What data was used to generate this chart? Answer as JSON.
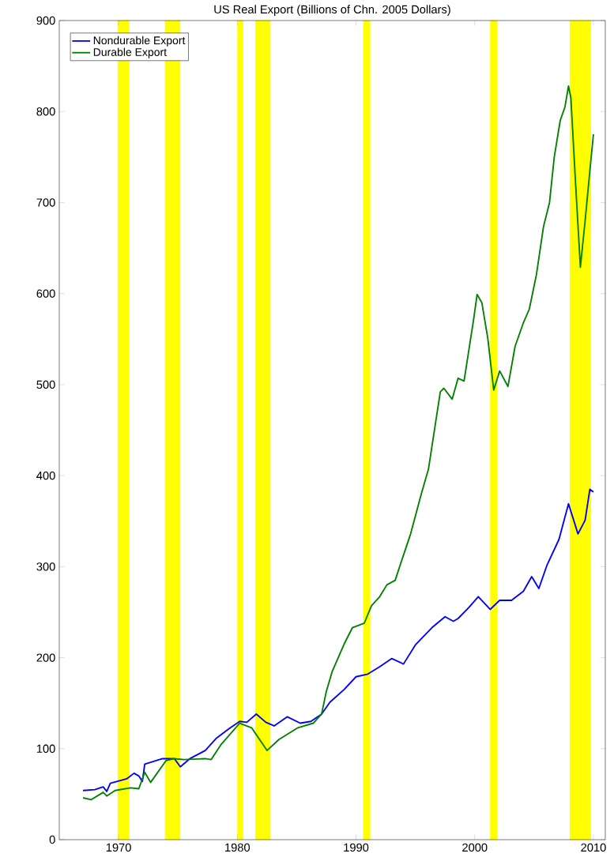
{
  "chart_data": {
    "type": "line",
    "title": "US Real Export (Billions of Chn. 2005 Dollars)",
    "xlim": [
      1965,
      2011
    ],
    "ylim": [
      0,
      900
    ],
    "xticks": [
      1970,
      1980,
      1990,
      2000,
      2010
    ],
    "yticks": [
      0,
      100,
      200,
      300,
      400,
      500,
      600,
      700,
      800,
      900
    ],
    "grid": false,
    "legend": "top left",
    "marker": "none",
    "line_style": "solid",
    "bands": [
      {
        "axis": "x",
        "from": 1969.9,
        "to": 1970.9,
        "color": "#ffff00"
      },
      {
        "axis": "x",
        "from": 1973.9,
        "to": 1975.2,
        "color": "#ffff00"
      },
      {
        "axis": "x",
        "from": 1980.0,
        "to": 1980.5,
        "color": "#ffff00"
      },
      {
        "axis": "x",
        "from": 1981.5,
        "to": 1982.8,
        "color": "#ffff00"
      },
      {
        "axis": "x",
        "from": 1990.6,
        "to": 1991.2,
        "color": "#ffff00"
      },
      {
        "axis": "x",
        "from": 2001.3,
        "to": 2001.9,
        "color": "#ffff00"
      },
      {
        "axis": "x",
        "from": 2008.0,
        "to": 2009.8,
        "color": "#ffff00"
      }
    ],
    "series": [
      {
        "name": "Nondurable Export",
        "color": "#0000ff",
        "x": [
          1967.0,
          1968.0,
          1968.7,
          1969.0,
          1969.3,
          1970.7,
          1971.3,
          1971.7,
          1972.0,
          1972.2,
          1973.7,
          1974.7,
          1975.2,
          1976.0,
          1977.3,
          1978.2,
          1979.3,
          1980.2,
          1980.8,
          1981.6,
          1982.4,
          1983.1,
          1984.2,
          1985.3,
          1986.2,
          1987.1,
          1987.8,
          1989.0,
          1990.0,
          1991.0,
          1992.0,
          1993.0,
          1994.0,
          1995.0,
          1996.4,
          1997.5,
          1998.2,
          1998.6,
          1999.5,
          2000.3,
          2001.3,
          2002.1,
          2003.1,
          2004.1,
          2004.8,
          2005.4,
          2006.1,
          2007.1,
          2007.9,
          2008.7,
          2009.3,
          2009.7,
          2010.0
        ],
        "values": [
          54,
          55,
          58,
          53,
          62,
          67,
          73,
          70,
          64,
          83,
          89,
          89,
          80,
          89,
          98,
          111,
          122,
          130,
          129,
          138,
          129,
          125,
          135,
          128,
          130,
          138,
          151,
          165,
          179,
          182,
          190,
          199,
          193,
          214,
          233,
          245,
          240,
          243,
          255,
          267,
          253,
          263,
          263,
          273,
          289,
          276,
          302,
          330,
          369,
          336,
          351,
          385,
          382
        ]
      },
      {
        "name": "Durable Export",
        "color": "#008000",
        "x": [
          1967.0,
          1967.7,
          1968.7,
          1969.0,
          1969.7,
          1971.0,
          1971.7,
          1972.2,
          1972.7,
          1974.0,
          1974.7,
          1975.5,
          1977.3,
          1977.8,
          1978.6,
          1980.2,
          1981.2,
          1982.5,
          1983.5,
          1985.1,
          1986.4,
          1987.1,
          1987.5,
          1988.0,
          1989.0,
          1989.7,
          1990.7,
          1991.3,
          1992.0,
          1992.6,
          1993.3,
          1993.7,
          1994.6,
          1995.5,
          1996.1,
          1997.1,
          1997.4,
          1998.1,
          1998.6,
          1999.1,
          1999.9,
          2000.2,
          2000.6,
          2001.1,
          2001.6,
          2002.1,
          2002.8,
          2003.4,
          2004.1,
          2004.6,
          2005.2,
          2005.8,
          2006.3,
          2006.7,
          2007.2,
          2007.6,
          2007.9,
          2008.1,
          2008.5,
          2008.9,
          2009.3,
          2009.7,
          2010.0
        ],
        "values": [
          46,
          44,
          52,
          48,
          54,
          57,
          56,
          74,
          63,
          87,
          89,
          88,
          89,
          88,
          104,
          128,
          123,
          98,
          110,
          123,
          128,
          138,
          163,
          185,
          215,
          233,
          238,
          257,
          267,
          280,
          285,
          301,
          336,
          380,
          407,
          492,
          496,
          484,
          507,
          504,
          571,
          599,
          590,
          551,
          494,
          515,
          498,
          542,
          568,
          583,
          621,
          674,
          700,
          750,
          790,
          805,
          828,
          815,
          720,
          629,
          680,
          735,
          775
        ]
      }
    ]
  }
}
